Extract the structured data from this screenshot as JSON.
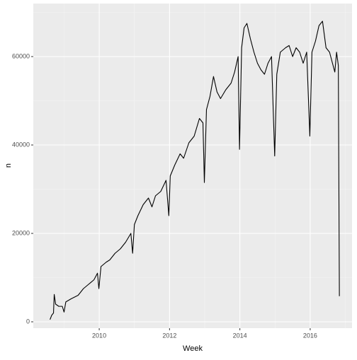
{
  "chart_data": {
    "type": "line",
    "x_label": "Week",
    "y_label": "n",
    "x": [
      2008.6,
      2008.65,
      2008.7,
      2008.72,
      2008.76,
      2008.85,
      2008.95,
      2009.0,
      2009.05,
      2009.2,
      2009.4,
      2009.55,
      2009.7,
      2009.85,
      2009.95,
      2009.99,
      2010.05,
      2010.2,
      2010.3,
      2010.45,
      2010.6,
      2010.75,
      2010.9,
      2010.95,
      2011.0,
      2011.1,
      2011.25,
      2011.4,
      2011.5,
      2011.6,
      2011.75,
      2011.9,
      2011.98,
      2012.02,
      2012.15,
      2012.3,
      2012.4,
      2012.55,
      2012.7,
      2012.85,
      2012.95,
      2012.99,
      2013.05,
      2013.15,
      2013.25,
      2013.35,
      2013.45,
      2013.6,
      2013.75,
      2013.85,
      2013.95,
      2013.99,
      2014.05,
      2014.12,
      2014.2,
      2014.3,
      2014.4,
      2014.5,
      2014.6,
      2014.7,
      2014.8,
      2014.9,
      2014.99,
      2015.05,
      2015.15,
      2015.3,
      2015.4,
      2015.5,
      2015.6,
      2015.7,
      2015.8,
      2015.9,
      2015.99,
      2016.05,
      2016.15,
      2016.25,
      2016.35,
      2016.45,
      2016.55,
      2016.65,
      2016.7,
      2016.75,
      2016.8,
      2016.83
    ],
    "series": [
      {
        "color": "#000000",
        "values": [
          500,
          1500,
          2000,
          6200,
          4000,
          3500,
          3500,
          2200,
          4500,
          5200,
          6000,
          7500,
          8500,
          9500,
          11000,
          7500,
          12500,
          13500,
          14000,
          15500,
          16500,
          18000,
          20000,
          15500,
          22000,
          24000,
          26500,
          28000,
          26000,
          28500,
          29500,
          32000,
          24000,
          33000,
          35500,
          38000,
          37000,
          40500,
          42000,
          46000,
          45000,
          31500,
          48000,
          51000,
          55500,
          52000,
          50500,
          52500,
          54000,
          56500,
          60000,
          39000,
          62000,
          66500,
          67500,
          64000,
          61000,
          58500,
          57000,
          56000,
          58500,
          60000,
          37500,
          56000,
          61000,
          62000,
          62500,
          60000,
          62000,
          61000,
          58500,
          61000,
          42000,
          61000,
          63500,
          67000,
          68000,
          62000,
          61000,
          58000,
          56500,
          61000,
          58000,
          5800
        ]
      }
    ],
    "xlim": [
      2008.125,
      2017.19
    ],
    "xticks": [
      2010,
      2012,
      2014,
      2016
    ],
    "ylim": [
      -1440,
      72000
    ],
    "yticks": [
      0,
      20000,
      40000,
      60000
    ],
    "grid": true
  }
}
